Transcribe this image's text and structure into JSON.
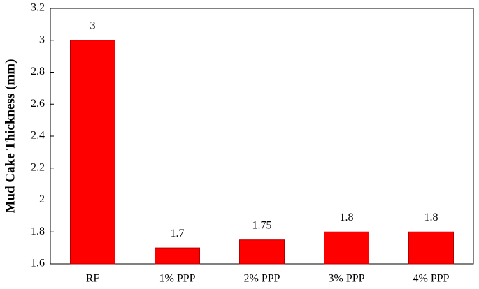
{
  "chart_data": {
    "type": "bar",
    "y_label": "Mud Cake Thickness (mm)",
    "categories": [
      "RF",
      "1% PPP",
      "2% PPP",
      "3% PPP",
      "4% PPP"
    ],
    "values": [
      3,
      1.7,
      1.75,
      1.8,
      1.8
    ],
    "color": "#ff0000",
    "ylim": [
      1.6,
      3.2
    ],
    "yticks": [
      1.6,
      1.8,
      2,
      2.2,
      2.4,
      2.6,
      2.8,
      3,
      3.2
    ],
    "grid": false
  }
}
